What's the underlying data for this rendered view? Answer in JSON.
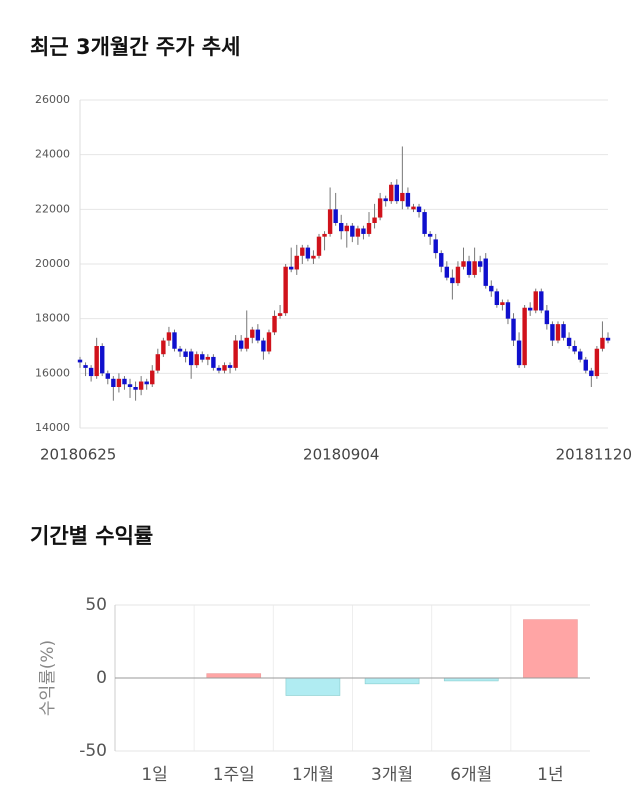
{
  "chart_data": [
    {
      "type": "candlestick",
      "title": "최근 3개월간 주가 추세",
      "categories": [
        "20180625",
        null,
        null,
        null,
        null,
        null,
        null,
        null,
        null,
        null,
        null,
        null,
        null,
        null,
        null,
        null,
        null,
        null,
        null,
        null,
        null,
        null,
        null,
        null,
        null,
        null,
        null,
        null,
        null,
        null,
        null,
        null,
        null,
        null,
        null,
        null,
        null,
        null,
        null,
        null,
        null,
        null,
        null,
        null,
        null,
        null,
        null,
        "20180904",
        null,
        null,
        null,
        null,
        null,
        null,
        null,
        null,
        null,
        null,
        null,
        null,
        null,
        null,
        null,
        null,
        null,
        null,
        null,
        null,
        null,
        null,
        null,
        null,
        null,
        null,
        null,
        null,
        null,
        null,
        null,
        null,
        null,
        null,
        null,
        null,
        null,
        null,
        null,
        null,
        null,
        null,
        null,
        null,
        null,
        null,
        null,
        "20181120"
      ],
      "ohlc": [
        [
          16500,
          16600,
          16200,
          16400
        ],
        [
          16300,
          16400,
          15900,
          16200
        ],
        [
          16200,
          16300,
          15700,
          15900
        ],
        [
          15900,
          17300,
          15800,
          17000
        ],
        [
          17000,
          17100,
          15900,
          16000
        ],
        [
          16000,
          16100,
          15600,
          15800
        ],
        [
          15800,
          15900,
          15000,
          15500
        ],
        [
          15500,
          16000,
          15300,
          15800
        ],
        [
          15800,
          15900,
          15400,
          15600
        ],
        [
          15600,
          15800,
          15100,
          15500
        ],
        [
          15500,
          15700,
          15000,
          15400
        ],
        [
          15400,
          15900,
          15200,
          15700
        ],
        [
          15700,
          15800,
          15400,
          15600
        ],
        [
          15600,
          16300,
          15500,
          16100
        ],
        [
          16100,
          16900,
          16000,
          16700
        ],
        [
          16700,
          17300,
          16600,
          17200
        ],
        [
          17200,
          17700,
          17000,
          17500
        ],
        [
          17500,
          17600,
          16800,
          16900
        ],
        [
          16900,
          17000,
          16600,
          16800
        ],
        [
          16800,
          16900,
          16400,
          16600
        ],
        [
          16800,
          16900,
          15800,
          16300
        ],
        [
          16300,
          16800,
          16200,
          16700
        ],
        [
          16700,
          16800,
          16400,
          16500
        ],
        [
          16500,
          16700,
          16300,
          16600
        ],
        [
          16600,
          16700,
          16100,
          16200
        ],
        [
          16200,
          16300,
          16000,
          16100
        ],
        [
          16100,
          16400,
          16000,
          16300
        ],
        [
          16300,
          16400,
          16000,
          16200
        ],
        [
          16200,
          17400,
          16100,
          17200
        ],
        [
          17200,
          17400,
          16800,
          16900
        ],
        [
          16900,
          18300,
          16800,
          17300
        ],
        [
          17300,
          17700,
          17100,
          17600
        ],
        [
          17600,
          17800,
          17100,
          17200
        ],
        [
          17200,
          17300,
          16500,
          16800
        ],
        [
          16800,
          17600,
          16700,
          17500
        ],
        [
          17500,
          18300,
          17400,
          18100
        ],
        [
          18100,
          18500,
          18000,
          18200
        ],
        [
          18200,
          20000,
          18100,
          19900
        ],
        [
          19900,
          20600,
          19700,
          19800
        ],
        [
          19800,
          20700,
          19600,
          20300
        ],
        [
          20300,
          20700,
          20000,
          20600
        ],
        [
          20600,
          20700,
          20100,
          20200
        ],
        [
          20200,
          20500,
          20000,
          20300
        ],
        [
          20300,
          21100,
          20200,
          21000
        ],
        [
          21000,
          21200,
          20500,
          21100
        ],
        [
          21100,
          22800,
          21000,
          22000
        ],
        [
          22000,
          22600,
          21400,
          21500
        ],
        [
          21500,
          21800,
          20900,
          21200
        ],
        [
          21200,
          21500,
          20600,
          21400
        ],
        [
          21400,
          21500,
          20800,
          21000
        ],
        [
          21000,
          21400,
          20700,
          21300
        ],
        [
          21300,
          21400,
          20900,
          21100
        ],
        [
          21100,
          21900,
          21000,
          21500
        ],
        [
          21500,
          22200,
          21300,
          21700
        ],
        [
          21700,
          22600,
          21600,
          22400
        ],
        [
          22400,
          22500,
          22100,
          22300
        ],
        [
          22300,
          23000,
          22200,
          22900
        ],
        [
          22900,
          23100,
          22200,
          22300
        ],
        [
          22300,
          24300,
          22000,
          22600
        ],
        [
          22600,
          22800,
          22000,
          22100
        ],
        [
          22000,
          22200,
          21900,
          22100
        ],
        [
          22100,
          22200,
          21700,
          21900
        ],
        [
          21900,
          22000,
          21000,
          21100
        ],
        [
          21100,
          21200,
          20700,
          21000
        ],
        [
          20900,
          21100,
          20200,
          20400
        ],
        [
          20400,
          20500,
          19700,
          19900
        ],
        [
          19900,
          20100,
          19400,
          19500
        ],
        [
          19500,
          19800,
          18700,
          19300
        ],
        [
          19300,
          20100,
          19200,
          19900
        ],
        [
          19900,
          20600,
          19800,
          20100
        ],
        [
          20100,
          20300,
          19500,
          19600
        ],
        [
          19600,
          20600,
          19500,
          20100
        ],
        [
          20100,
          20300,
          19700,
          19900
        ],
        [
          20200,
          20400,
          19100,
          19200
        ],
        [
          19200,
          19400,
          18800,
          19000
        ],
        [
          19000,
          19100,
          18400,
          18500
        ],
        [
          18500,
          18700,
          18300,
          18600
        ],
        [
          18600,
          18700,
          17800,
          18000
        ],
        [
          18000,
          18200,
          17000,
          17200
        ],
        [
          17200,
          17500,
          16200,
          16300
        ],
        [
          16300,
          18500,
          16200,
          18400
        ],
        [
          18400,
          18600,
          18100,
          18300
        ],
        [
          18300,
          19100,
          18200,
          19000
        ],
        [
          19000,
          19100,
          18200,
          18300
        ],
        [
          18300,
          18500,
          17600,
          17800
        ],
        [
          17800,
          17900,
          17000,
          17200
        ],
        [
          17200,
          17900,
          17100,
          17800
        ],
        [
          17800,
          17900,
          17200,
          17300
        ],
        [
          17300,
          17500,
          16900,
          17000
        ],
        [
          17000,
          17200,
          16700,
          16800
        ],
        [
          16800,
          16900,
          16400,
          16500
        ],
        [
          16500,
          16600,
          16000,
          16100
        ],
        [
          16100,
          16200,
          15500,
          15900
        ],
        [
          15900,
          17000,
          15800,
          16900
        ],
        [
          16900,
          17900,
          16800,
          17300
        ],
        [
          17300,
          17500,
          17100,
          17200
        ]
      ],
      "up_color": "#d0121b",
      "down_color": "#0f0fcd",
      "ylim": [
        14000,
        26000
      ],
      "yticks": [
        14000,
        16000,
        18000,
        20000,
        22000,
        24000,
        26000
      ],
      "grid": true
    },
    {
      "type": "bar",
      "title": "기간별 수익률",
      "y_label": "수익률(%)",
      "categories": [
        "1일",
        "1주일",
        "1개월",
        "3개월",
        "6개월",
        "1년"
      ],
      "values": [
        0,
        3,
        -12,
        -4,
        -2,
        40
      ],
      "up_color": "#ffa5a5",
      "down_color": "#b0ecf2",
      "ylim": [
        -50,
        50
      ],
      "yticks": [
        -50,
        0,
        50
      ],
      "grid": true
    }
  ]
}
